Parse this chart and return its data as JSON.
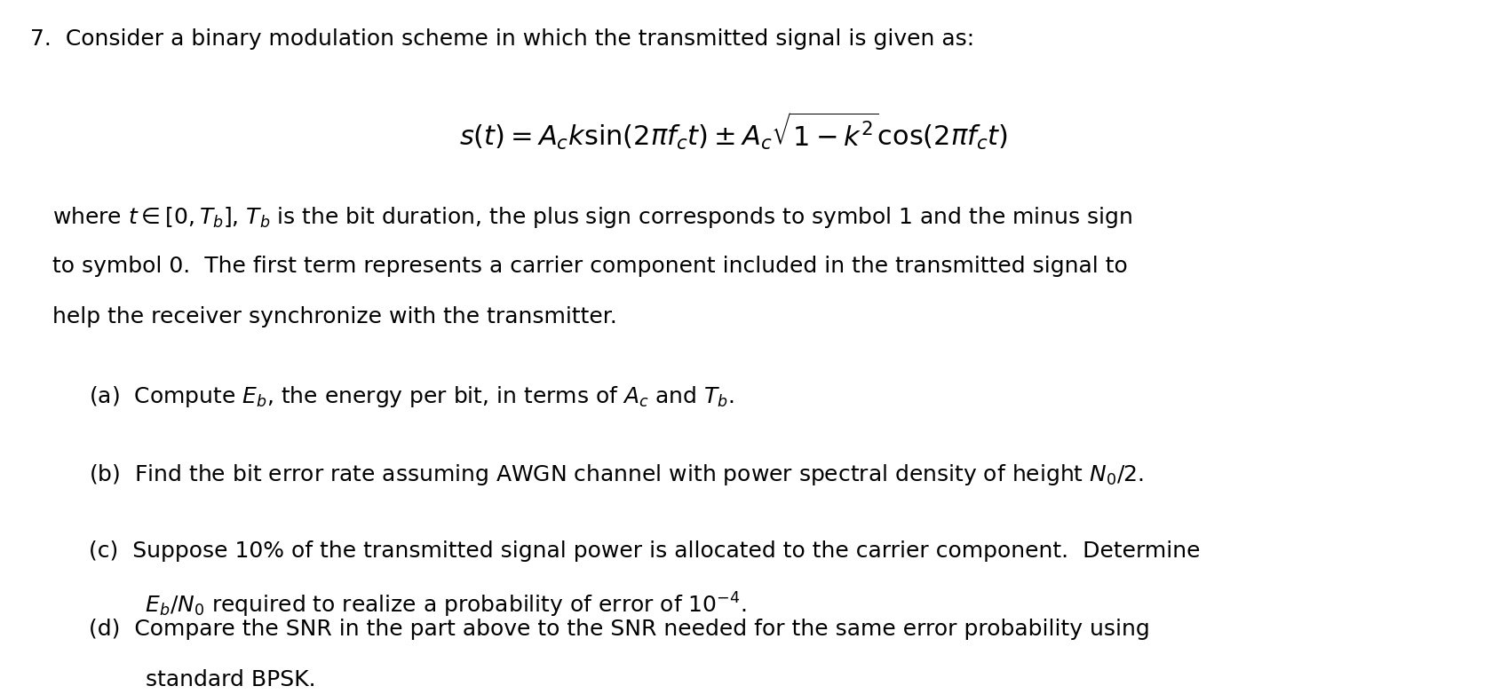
{
  "background_color": "#ffffff",
  "figsize": [
    16.8,
    7.82
  ],
  "dpi": 100,
  "title_text": "7.  Consider a binary modulation scheme in which the transmitted signal is given as:",
  "formula": "$s(t) = A_c k \\sin(2\\pi f_c t) \\pm A_c\\sqrt{1 - k^2}\\cos(2\\pi f_c t)$",
  "paragraph": "where $t \\in [0, T_b]$, $T_b$ is the bit duration, the plus sign corresponds to symbol 1 and the minus sign\nto symbol 0.  The first term represents a carrier component included in the transmitted signal to\nhelp the receiver synchronize with the transmitter.",
  "parts": [
    "(a)  Compute $E_b$, the energy per bit, in terms of $A_c$ and $T_b$.",
    "(b)  Find the bit error rate assuming AWGN channel with power spectral density of height $N_0/2$.",
    "(c)  Suppose 10% of the transmitted signal power is allocated to the carrier component.  Determine\n        $E_b/N_0$ required to realize a probability of error of $10^{-4}$.",
    "(d)  Compare the SNR in the part above to the SNR needed for the same error probability using\n        standard BPSK."
  ],
  "font_size_title": 18,
  "font_size_formula": 22,
  "font_size_body": 18,
  "font_size_parts": 18,
  "text_color": "#000000"
}
